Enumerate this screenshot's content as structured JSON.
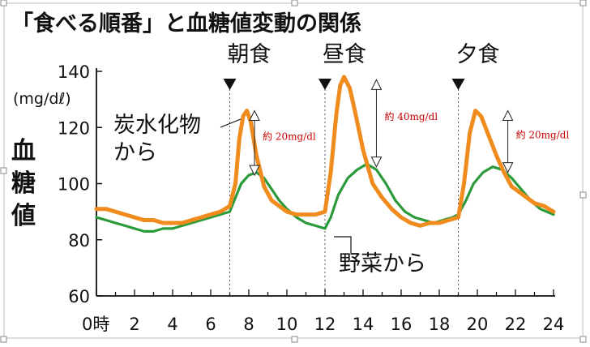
{
  "chart_data": {
    "type": "line",
    "title": "「食べる順番」と血糖値変動の関係",
    "ylabel": "血糖値",
    "yunit": "(mg/dℓ)",
    "xlabel": "",
    "ylim": [
      60,
      140
    ],
    "xlim": [
      0,
      24
    ],
    "xticks": [
      "0時",
      "2",
      "4",
      "6",
      "8",
      "10",
      "12",
      "14",
      "16",
      "18",
      "20",
      "22",
      "24"
    ],
    "yticks": [
      "60",
      "80",
      "100",
      "120",
      "140"
    ],
    "colors": {
      "carb_first": "#f08c1e",
      "veg_first": "#2a9a3a",
      "axis": "#111111",
      "annotation": "#cc0000"
    },
    "meals": [
      {
        "label": "朝食",
        "x": 7
      },
      {
        "label": "昼食",
        "x": 12
      },
      {
        "label": "夕食",
        "x": 19
      }
    ],
    "series": [
      {
        "name": "炭水化物から",
        "label_lines": [
          "炭水化物",
          "から"
        ],
        "points": [
          [
            0,
            91
          ],
          [
            0.5,
            91
          ],
          [
            1,
            90
          ],
          [
            1.5,
            89
          ],
          [
            2,
            88
          ],
          [
            2.5,
            87
          ],
          [
            3,
            87
          ],
          [
            3.5,
            86
          ],
          [
            4,
            86
          ],
          [
            4.5,
            86
          ],
          [
            5,
            87
          ],
          [
            5.5,
            88
          ],
          [
            6,
            89
          ],
          [
            6.5,
            90
          ],
          [
            7,
            92
          ],
          [
            7.3,
            100
          ],
          [
            7.5,
            116
          ],
          [
            7.7,
            124
          ],
          [
            7.9,
            126
          ],
          [
            8.1,
            122
          ],
          [
            8.4,
            110
          ],
          [
            8.8,
            99
          ],
          [
            9.2,
            94
          ],
          [
            9.6,
            92
          ],
          [
            10,
            90
          ],
          [
            10.5,
            89
          ],
          [
            11,
            89
          ],
          [
            11.5,
            89
          ],
          [
            12,
            90
          ],
          [
            12.3,
            104
          ],
          [
            12.6,
            125
          ],
          [
            12.8,
            135
          ],
          [
            13,
            138
          ],
          [
            13.3,
            134
          ],
          [
            13.6,
            125
          ],
          [
            14,
            112
          ],
          [
            14.5,
            100
          ],
          [
            15,
            95
          ],
          [
            15.5,
            91
          ],
          [
            16,
            88
          ],
          [
            16.5,
            86
          ],
          [
            17,
            85
          ],
          [
            17.5,
            86
          ],
          [
            18,
            86
          ],
          [
            18.5,
            87
          ],
          [
            19,
            88
          ],
          [
            19.3,
            100
          ],
          [
            19.6,
            118
          ],
          [
            19.9,
            126
          ],
          [
            20.2,
            124
          ],
          [
            20.6,
            117
          ],
          [
            21,
            110
          ],
          [
            21.4,
            104
          ],
          [
            21.8,
            99
          ],
          [
            22.2,
            97
          ],
          [
            22.6,
            95
          ],
          [
            23,
            93
          ],
          [
            23.5,
            92
          ],
          [
            24,
            90
          ]
        ]
      },
      {
        "name": "野菜から",
        "label_lines": [
          "野菜から"
        ],
        "points": [
          [
            0,
            88
          ],
          [
            0.5,
            87
          ],
          [
            1,
            86
          ],
          [
            1.5,
            85
          ],
          [
            2,
            84
          ],
          [
            2.5,
            83
          ],
          [
            3,
            83
          ],
          [
            3.5,
            84
          ],
          [
            4,
            84
          ],
          [
            4.5,
            85
          ],
          [
            5,
            86
          ],
          [
            5.5,
            87
          ],
          [
            6,
            88
          ],
          [
            6.5,
            89
          ],
          [
            7,
            90
          ],
          [
            7.3,
            95
          ],
          [
            7.6,
            100
          ],
          [
            8,
            103
          ],
          [
            8.4,
            104
          ],
          [
            8.8,
            102
          ],
          [
            9.2,
            98
          ],
          [
            9.6,
            94
          ],
          [
            10,
            91
          ],
          [
            10.5,
            88
          ],
          [
            11,
            86
          ],
          [
            11.5,
            85
          ],
          [
            12,
            84
          ],
          [
            12.3,
            88
          ],
          [
            12.7,
            96
          ],
          [
            13.2,
            102
          ],
          [
            13.7,
            105
          ],
          [
            14.2,
            107
          ],
          [
            14.7,
            105
          ],
          [
            15.2,
            100
          ],
          [
            15.7,
            94
          ],
          [
            16.2,
            90
          ],
          [
            16.7,
            88
          ],
          [
            17.2,
            87
          ],
          [
            17.7,
            86
          ],
          [
            18.2,
            87
          ],
          [
            18.7,
            88
          ],
          [
            19,
            89
          ],
          [
            19.4,
            94
          ],
          [
            19.8,
            100
          ],
          [
            20.3,
            104
          ],
          [
            20.8,
            106
          ],
          [
            21.3,
            105
          ],
          [
            21.8,
            102
          ],
          [
            22.3,
            98
          ],
          [
            22.8,
            94
          ],
          [
            23.3,
            91
          ],
          [
            24,
            89
          ]
        ]
      }
    ],
    "annotations": [
      {
        "text": "約 20mg/dl",
        "x": 8.3,
        "y_top": 126,
        "y_bottom": 103
      },
      {
        "text": "約 40mg/dl",
        "x": 14.7,
        "y_top": 137,
        "y_bottom": 106
      },
      {
        "text": "約 20mg/dl",
        "x": 21.6,
        "y_top": 126,
        "y_bottom": 104
      }
    ],
    "grid": false
  }
}
